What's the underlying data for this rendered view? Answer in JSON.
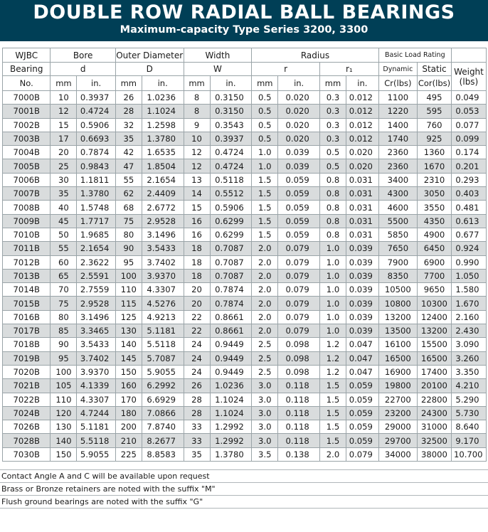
{
  "header": {
    "title": "DOUBLE ROW RADIAL BALL BEARINGS",
    "subtitle": "Maximum-capacity Type Series 3200, 3300"
  },
  "table": {
    "group_headers": {
      "wjbc": "WJBC",
      "bore": "Bore",
      "outer": "Outer Diameter",
      "width": "Width",
      "radius": "Radius",
      "load": "Basic Load Rating"
    },
    "sub_headers": {
      "bearing": "Bearing",
      "d": "d",
      "D": "D",
      "W": "W",
      "r": "r",
      "r1": "r₁",
      "dynamic": "Dynamic",
      "static": "Static",
      "weight": "Weight"
    },
    "unit_headers": {
      "no": "No.",
      "mm": "mm",
      "in": "in.",
      "cr": "Cr(lbs)",
      "cor": "Cor(lbs)",
      "lbs": "(lbs)"
    },
    "rows": [
      [
        "7000B",
        "10",
        "0.3937",
        "26",
        "1.0236",
        "8",
        "0.3150",
        "0.5",
        "0.020",
        "0.3",
        "0.012",
        "1100",
        "495",
        "0.049"
      ],
      [
        "7001B",
        "12",
        "0.4724",
        "28",
        "1.1024",
        "8",
        "0.3150",
        "0.5",
        "0.020",
        "0.3",
        "0.012",
        "1220",
        "595",
        "0.053"
      ],
      [
        "7002B",
        "15",
        "0.5906",
        "32",
        "1.2598",
        "9",
        "0.3543",
        "0.5",
        "0.020",
        "0.3",
        "0.012",
        "1400",
        "760",
        "0.077"
      ],
      [
        "7003B",
        "17",
        "0.6693",
        "35",
        "1.3780",
        "10",
        "0.3937",
        "0.5",
        "0.020",
        "0.3",
        "0.012",
        "1740",
        "925",
        "0.099"
      ],
      [
        "7004B",
        "20",
        "0.7874",
        "42",
        "1.6535",
        "12",
        "0.4724",
        "1.0",
        "0.039",
        "0.5",
        "0.020",
        "2360",
        "1360",
        "0.174"
      ],
      [
        "7005B",
        "25",
        "0.9843",
        "47",
        "1.8504",
        "12",
        "0.4724",
        "1.0",
        "0.039",
        "0.5",
        "0.020",
        "2360",
        "1670",
        "0.201"
      ],
      [
        "7006B",
        "30",
        "1.1811",
        "55",
        "2.1654",
        "13",
        "0.5118",
        "1.5",
        "0.059",
        "0.8",
        "0.031",
        "3400",
        "2310",
        "0.293"
      ],
      [
        "7007B",
        "35",
        "1.3780",
        "62",
        "2.4409",
        "14",
        "0.5512",
        "1.5",
        "0.059",
        "0.8",
        "0.031",
        "4300",
        "3050",
        "0.403"
      ],
      [
        "7008B",
        "40",
        "1.5748",
        "68",
        "2.6772",
        "15",
        "0.5906",
        "1.5",
        "0.059",
        "0.8",
        "0.031",
        "4600",
        "3550",
        "0.481"
      ],
      [
        "7009B",
        "45",
        "1.7717",
        "75",
        "2.9528",
        "16",
        "0.6299",
        "1.5",
        "0.059",
        "0.8",
        "0.031",
        "5500",
        "4350",
        "0.613"
      ],
      [
        "7010B",
        "50",
        "1.9685",
        "80",
        "3.1496",
        "16",
        "0.6299",
        "1.5",
        "0.059",
        "0.8",
        "0.031",
        "5850",
        "4900",
        "0.677"
      ],
      [
        "7011B",
        "55",
        "2.1654",
        "90",
        "3.5433",
        "18",
        "0.7087",
        "2.0",
        "0.079",
        "1.0",
        "0.039",
        "7650",
        "6450",
        "0.924"
      ],
      [
        "7012B",
        "60",
        "2.3622",
        "95",
        "3.7402",
        "18",
        "0.7087",
        "2.0",
        "0.079",
        "1.0",
        "0.039",
        "7900",
        "6900",
        "0.990"
      ],
      [
        "7013B",
        "65",
        "2.5591",
        "100",
        "3.9370",
        "18",
        "0.7087",
        "2.0",
        "0.079",
        "1.0",
        "0.039",
        "8350",
        "7700",
        "1.050"
      ],
      [
        "7014B",
        "70",
        "2.7559",
        "110",
        "4.3307",
        "20",
        "0.7874",
        "2.0",
        "0.079",
        "1.0",
        "0.039",
        "10500",
        "9650",
        "1.580"
      ],
      [
        "7015B",
        "75",
        "2.9528",
        "115",
        "4.5276",
        "20",
        "0.7874",
        "2.0",
        "0.079",
        "1.0",
        "0.039",
        "10800",
        "10300",
        "1.670"
      ],
      [
        "7016B",
        "80",
        "3.1496",
        "125",
        "4.9213",
        "22",
        "0.8661",
        "2.0",
        "0.079",
        "1.0",
        "0.039",
        "13200",
        "12400",
        "2.160"
      ],
      [
        "7017B",
        "85",
        "3.3465",
        "130",
        "5.1181",
        "22",
        "0.8661",
        "2.0",
        "0.079",
        "1.0",
        "0.039",
        "13500",
        "13200",
        "2.430"
      ],
      [
        "7018B",
        "90",
        "3.5433",
        "140",
        "5.5118",
        "24",
        "0.9449",
        "2.5",
        "0.098",
        "1.2",
        "0.047",
        "16100",
        "15500",
        "3.090"
      ],
      [
        "7019B",
        "95",
        "3.7402",
        "145",
        "5.7087",
        "24",
        "0.9449",
        "2.5",
        "0.098",
        "1.2",
        "0.047",
        "16500",
        "16500",
        "3.260"
      ],
      [
        "7020B",
        "100",
        "3.9370",
        "150",
        "5.9055",
        "24",
        "0.9449",
        "2.5",
        "0.098",
        "1.2",
        "0.047",
        "16900",
        "17400",
        "3.350"
      ],
      [
        "7021B",
        "105",
        "4.1339",
        "160",
        "6.2992",
        "26",
        "1.0236",
        "3.0",
        "0.118",
        "1.5",
        "0.059",
        "19800",
        "20100",
        "4.210"
      ],
      [
        "7022B",
        "110",
        "4.3307",
        "170",
        "6.6929",
        "28",
        "1.1024",
        "3.0",
        "0.118",
        "1.5",
        "0.059",
        "22700",
        "22800",
        "5.290"
      ],
      [
        "7024B",
        "120",
        "4.7244",
        "180",
        "7.0866",
        "28",
        "1.1024",
        "3.0",
        "0.118",
        "1.5",
        "0.059",
        "23200",
        "24300",
        "5.730"
      ],
      [
        "7026B",
        "130",
        "5.1181",
        "200",
        "7.8740",
        "33",
        "1.2992",
        "3.0",
        "0.118",
        "1.5",
        "0.059",
        "29000",
        "31000",
        "8.640"
      ],
      [
        "7028B",
        "140",
        "5.5118",
        "210",
        "8.2677",
        "33",
        "1.2992",
        "3.0",
        "0.118",
        "1.5",
        "0.059",
        "29700",
        "32500",
        "9.170"
      ],
      [
        "7030B",
        "150",
        "5.9055",
        "225",
        "8.8583",
        "35",
        "1.3780",
        "3.5",
        "0.138",
        "2.0",
        "0.079",
        "34000",
        "38000",
        "10.700"
      ]
    ]
  },
  "notes": [
    "Contact Angle A and C will be available upon request",
    "Brass or Bronze retainers are noted with the suffix \"M\"",
    "Flush ground bearings are noted with the suffix \"G\""
  ]
}
